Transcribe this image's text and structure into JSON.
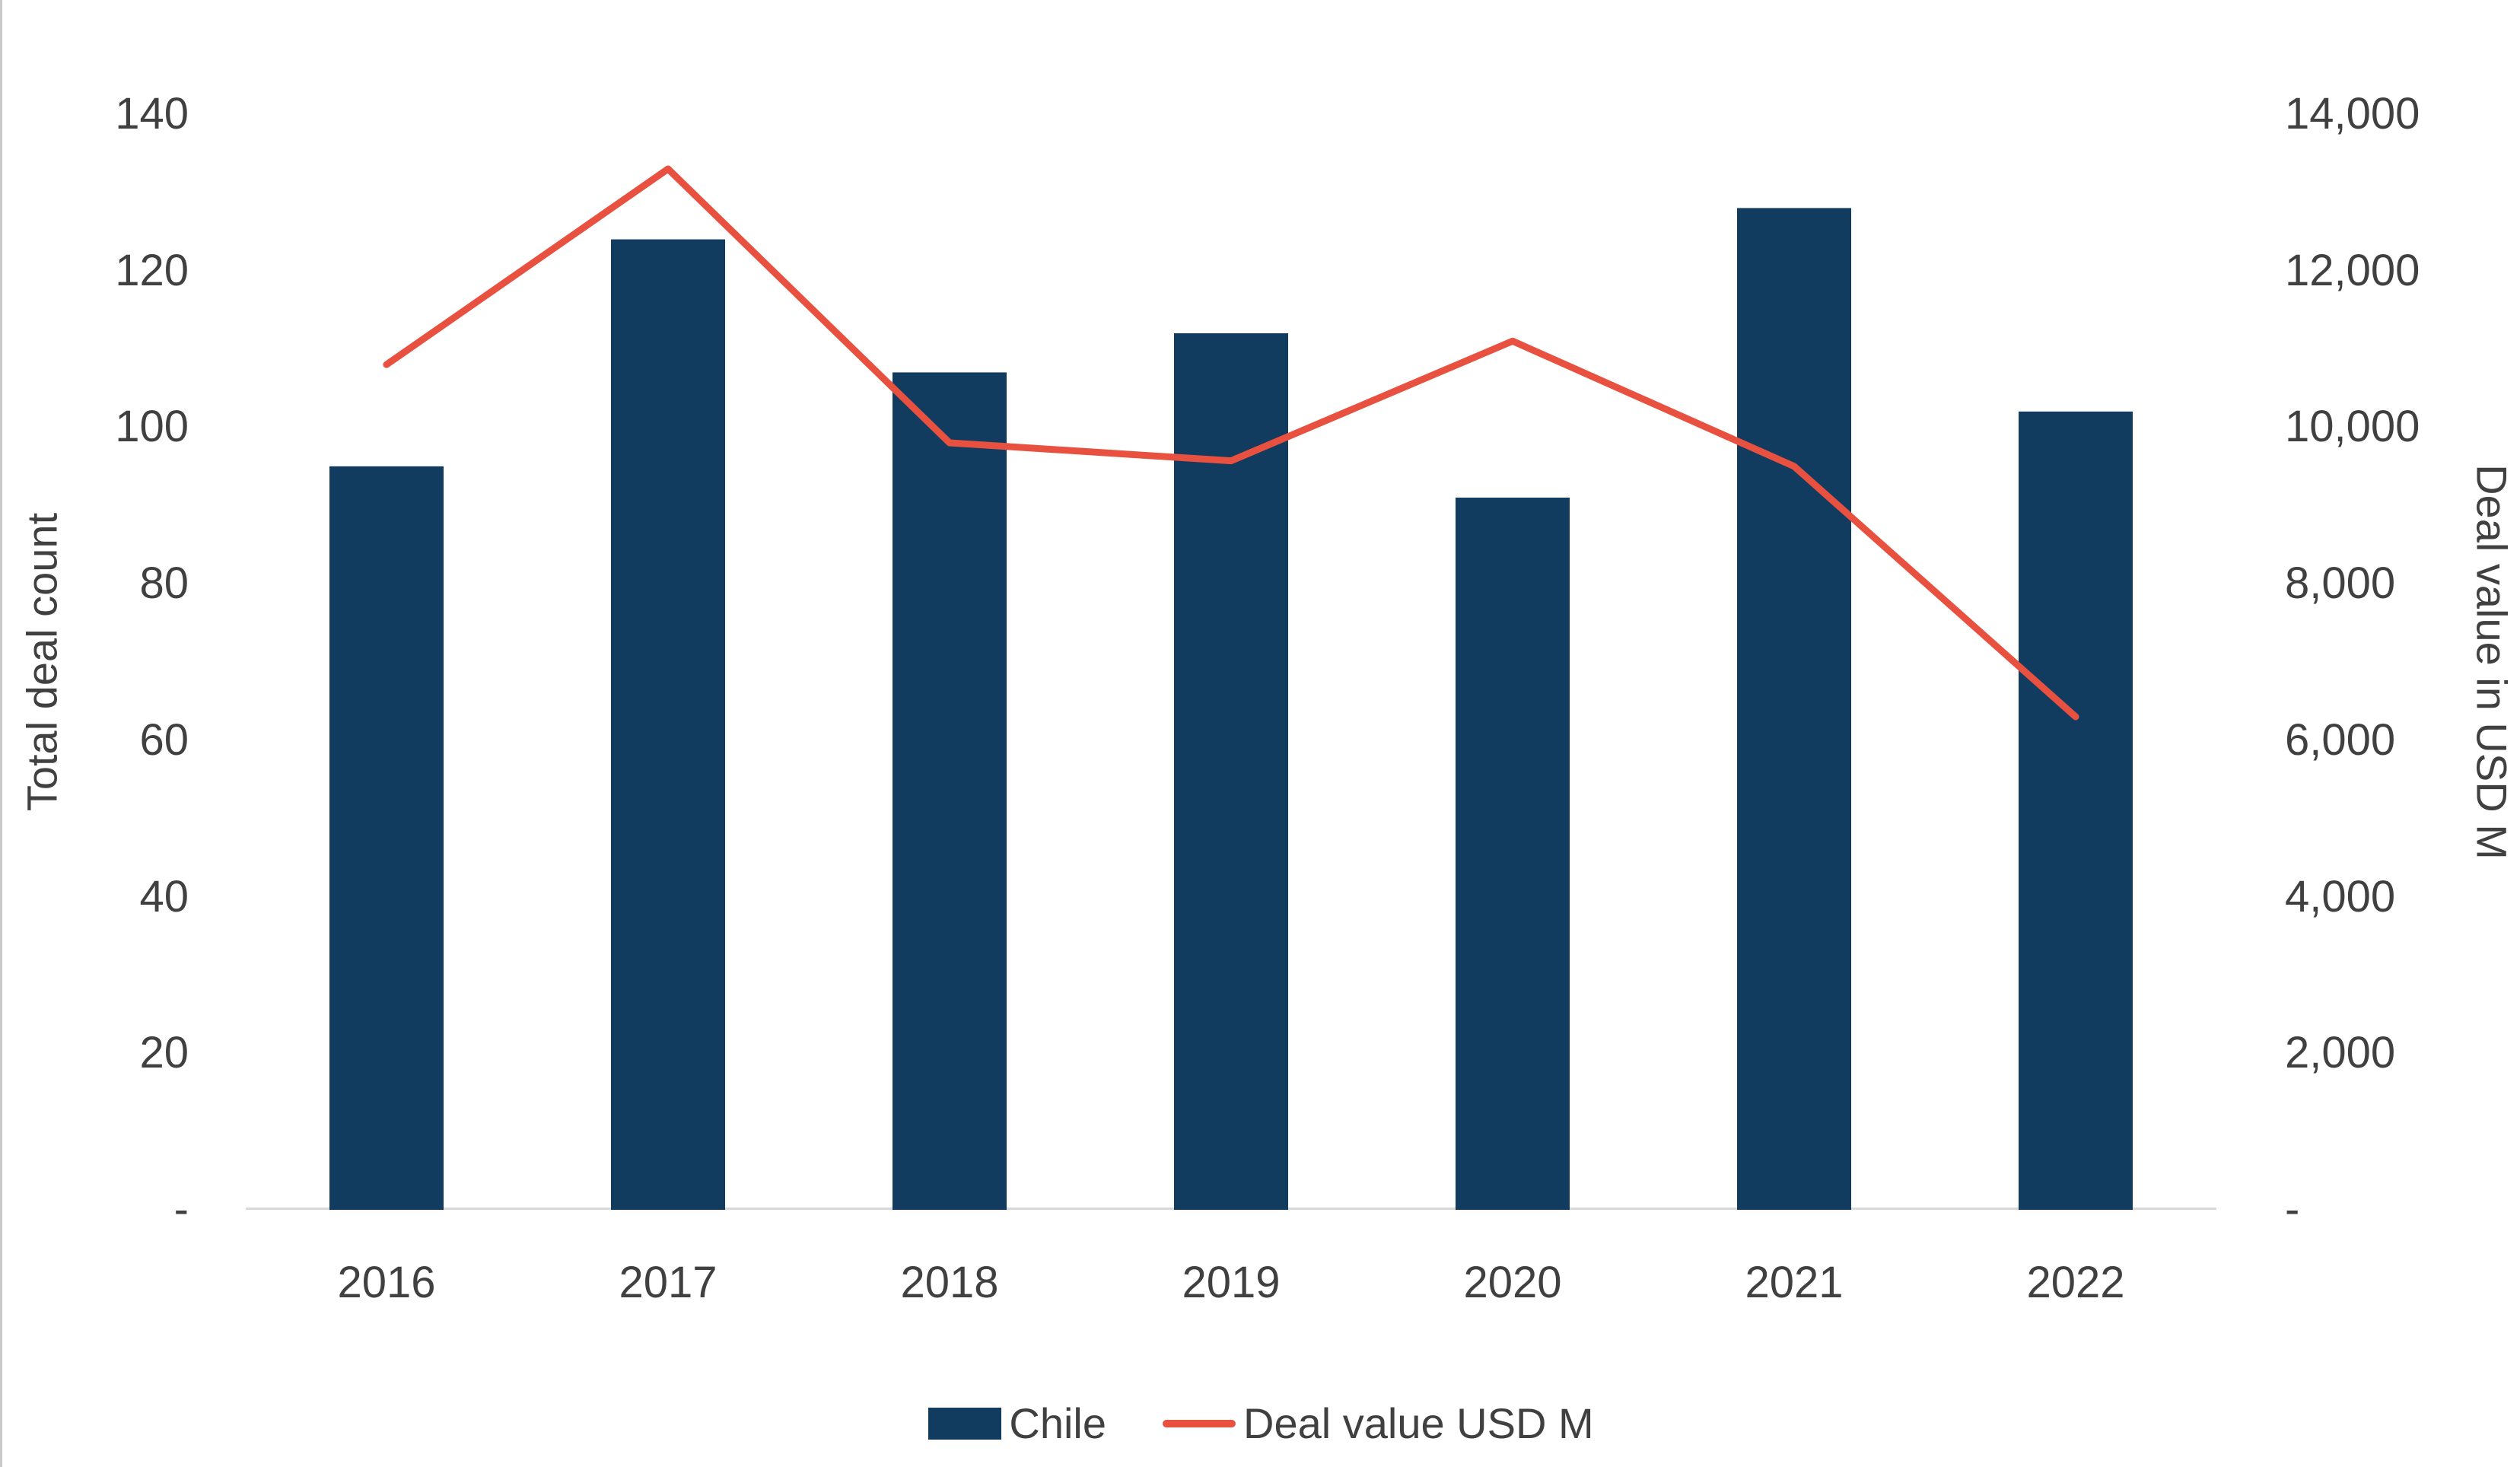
{
  "chart_data": {
    "type": "combo",
    "title": "",
    "categories": [
      "2016",
      "2017",
      "2018",
      "2019",
      "2020",
      "2021",
      "2022"
    ],
    "series": [
      {
        "name": "Chile",
        "type": "bar",
        "axis": "left",
        "color": "#123b60",
        "values": [
          95,
          124,
          107,
          112,
          91,
          128,
          102
        ]
      },
      {
        "name": "Deal value USD M",
        "type": "line",
        "axis": "right",
        "color": "#e8513f",
        "values": [
          10800,
          13300,
          9800,
          9570,
          11100,
          9500,
          6300
        ]
      }
    ],
    "left_axis": {
      "title": "Total deal count",
      "min": 0,
      "max": 140,
      "step": 20,
      "tick_labels": [
        "-",
        "20",
        "40",
        "60",
        "80",
        "100",
        "120",
        "140"
      ]
    },
    "right_axis": {
      "title": "Deal value in USD M",
      "min": 0,
      "max": 14000,
      "step": 2000,
      "tick_labels": [
        "-",
        "2,000",
        "4,000",
        "6,000",
        "8,000",
        "10,000",
        "12,000",
        "14,000"
      ]
    },
    "legend": [
      {
        "label": "Chile",
        "swatch": "bar",
        "color": "#123b60"
      },
      {
        "label": "Deal value USD M",
        "swatch": "line",
        "color": "#e8513f"
      }
    ],
    "grid": false,
    "legend_position": "bottom",
    "axis_line_color": "#d9d9d9",
    "text_color": "#404040"
  }
}
